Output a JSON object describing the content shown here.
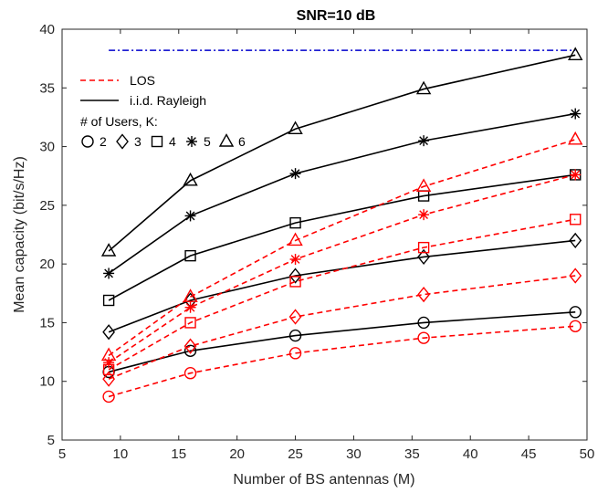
{
  "chart_data": {
    "type": "line",
    "title": "SNR=10 dB",
    "xlabel": "Number of BS antennas (M)",
    "ylabel": "Mean capacity (bit/s/Hz)",
    "xlim": [
      5,
      50
    ],
    "ylim": [
      5,
      40
    ],
    "xticks": [
      5,
      10,
      15,
      20,
      25,
      30,
      35,
      40,
      45,
      50
    ],
    "yticks": [
      5,
      10,
      15,
      20,
      25,
      30,
      35,
      40
    ],
    "grid": false,
    "legend_position": "top-left",
    "legend": {
      "los_label": "LOS",
      "rayleigh_label": "i.i.d. Rayleigh",
      "users_heading": "# of Users, K:",
      "users": [
        {
          "marker": "circle",
          "label": "2"
        },
        {
          "marker": "diamond",
          "label": "3"
        },
        {
          "marker": "square",
          "label": "4"
        },
        {
          "marker": "asterisk",
          "label": "5"
        },
        {
          "marker": "triangle",
          "label": "6"
        }
      ]
    },
    "colors": {
      "los": "#ff0000",
      "rayleigh": "#000000",
      "reference": "#0000cc"
    },
    "x": [
      9,
      16,
      25,
      36,
      49
    ],
    "series": [
      {
        "group": "rayleigh",
        "K": 2,
        "marker": "circle",
        "values": [
          10.8,
          12.6,
          13.9,
          15.0,
          15.9
        ]
      },
      {
        "group": "rayleigh",
        "K": 3,
        "marker": "diamond",
        "values": [
          14.2,
          16.9,
          19.0,
          20.6,
          22.0
        ]
      },
      {
        "group": "rayleigh",
        "K": 4,
        "marker": "square",
        "values": [
          16.9,
          20.7,
          23.5,
          25.8,
          27.6
        ]
      },
      {
        "group": "rayleigh",
        "K": 5,
        "marker": "asterisk",
        "values": [
          19.2,
          24.1,
          27.7,
          30.5,
          32.8
        ]
      },
      {
        "group": "rayleigh",
        "K": 6,
        "marker": "triangle",
        "values": [
          21.1,
          27.1,
          31.5,
          34.9,
          37.8
        ]
      },
      {
        "group": "los",
        "K": 2,
        "marker": "circle",
        "values": [
          8.7,
          10.7,
          12.4,
          13.7,
          14.7
        ]
      },
      {
        "group": "los",
        "K": 3,
        "marker": "diamond",
        "values": [
          10.2,
          13.0,
          15.5,
          17.4,
          19.0
        ]
      },
      {
        "group": "los",
        "K": 4,
        "marker": "square",
        "values": [
          11.0,
          15.0,
          18.5,
          21.4,
          23.8
        ]
      },
      {
        "group": "los",
        "K": 5,
        "marker": "asterisk",
        "values": [
          11.6,
          16.3,
          20.4,
          24.2,
          27.6
        ]
      },
      {
        "group": "los",
        "K": 6,
        "marker": "triangle",
        "values": [
          12.2,
          17.2,
          22.0,
          26.6,
          30.6
        ]
      }
    ],
    "reference_line": {
      "x": [
        9,
        49
      ],
      "value": 38.2
    }
  }
}
